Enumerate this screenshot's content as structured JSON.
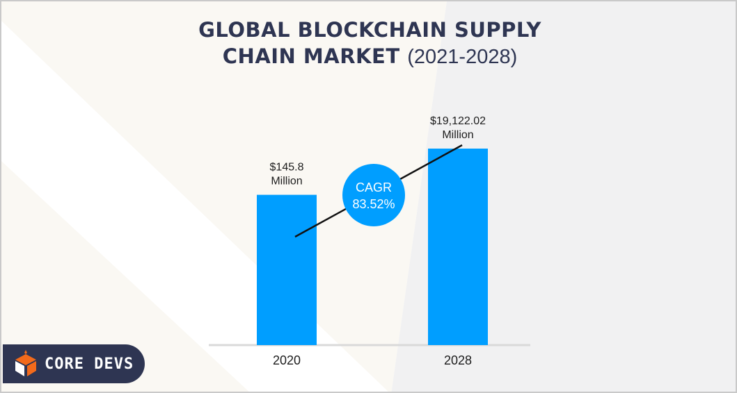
{
  "title": {
    "line1": "GLOBAL BLOCKCHAIN SUPPLY",
    "line2": "CHAIN MARKET",
    "years": "(2021-2028)"
  },
  "colors": {
    "bar": "#009eff",
    "title": "#2e3552",
    "cagr_circle": "#009eff",
    "logo_bg": "#2e3552",
    "logo_accent": "#f26a1b"
  },
  "chart_data": {
    "type": "bar",
    "categories": [
      "2020",
      "2028"
    ],
    "values": [
      145.8,
      19122.02
    ],
    "value_labels": [
      [
        "$145.8",
        "Million"
      ],
      [
        "$19,122.02",
        "Million"
      ]
    ],
    "annotation": {
      "line1": "CAGR",
      "line2": "83.52%"
    }
  },
  "logo": {
    "text": "CORE DEVS",
    "icon": "core-devs-logo-icon"
  }
}
